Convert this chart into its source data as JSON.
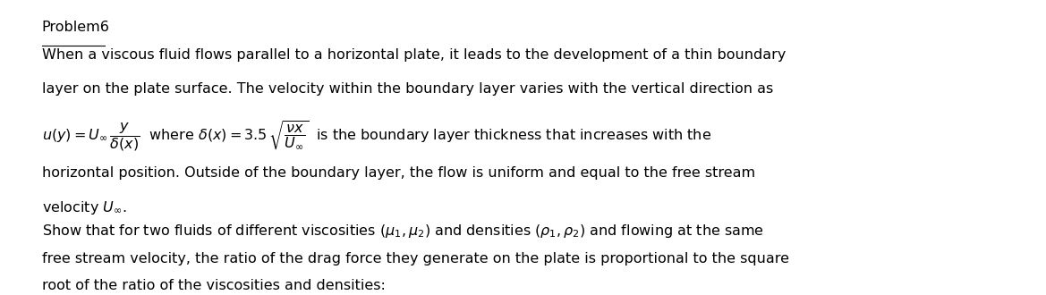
{
  "background_color": "#ffffff",
  "text_color": "#000000",
  "figsize": [
    11.69,
    3.3
  ],
  "dpi": 100,
  "fontsize": 11.5,
  "title": "Problem6",
  "line2": "When a viscous fluid flows parallel to a horizontal plate, it leads to the development of a thin boundary",
  "line3": "layer on the plate surface. The velocity within the boundary layer varies with the vertical direction as",
  "line5": "horizontal position. Outside of the boundary layer, the flow is uniform and equal to the free stream",
  "line6a": "velocity ",
  "line7": "Show that for two fluids of different viscosities ",
  "line7b": " and densities ",
  "line7c": " and flowing at the same",
  "line8": "free stream velocity, the ratio of the drag force they generate on the plate is proportional to the square",
  "line9": "root of the ratio of the viscosities and densities:"
}
